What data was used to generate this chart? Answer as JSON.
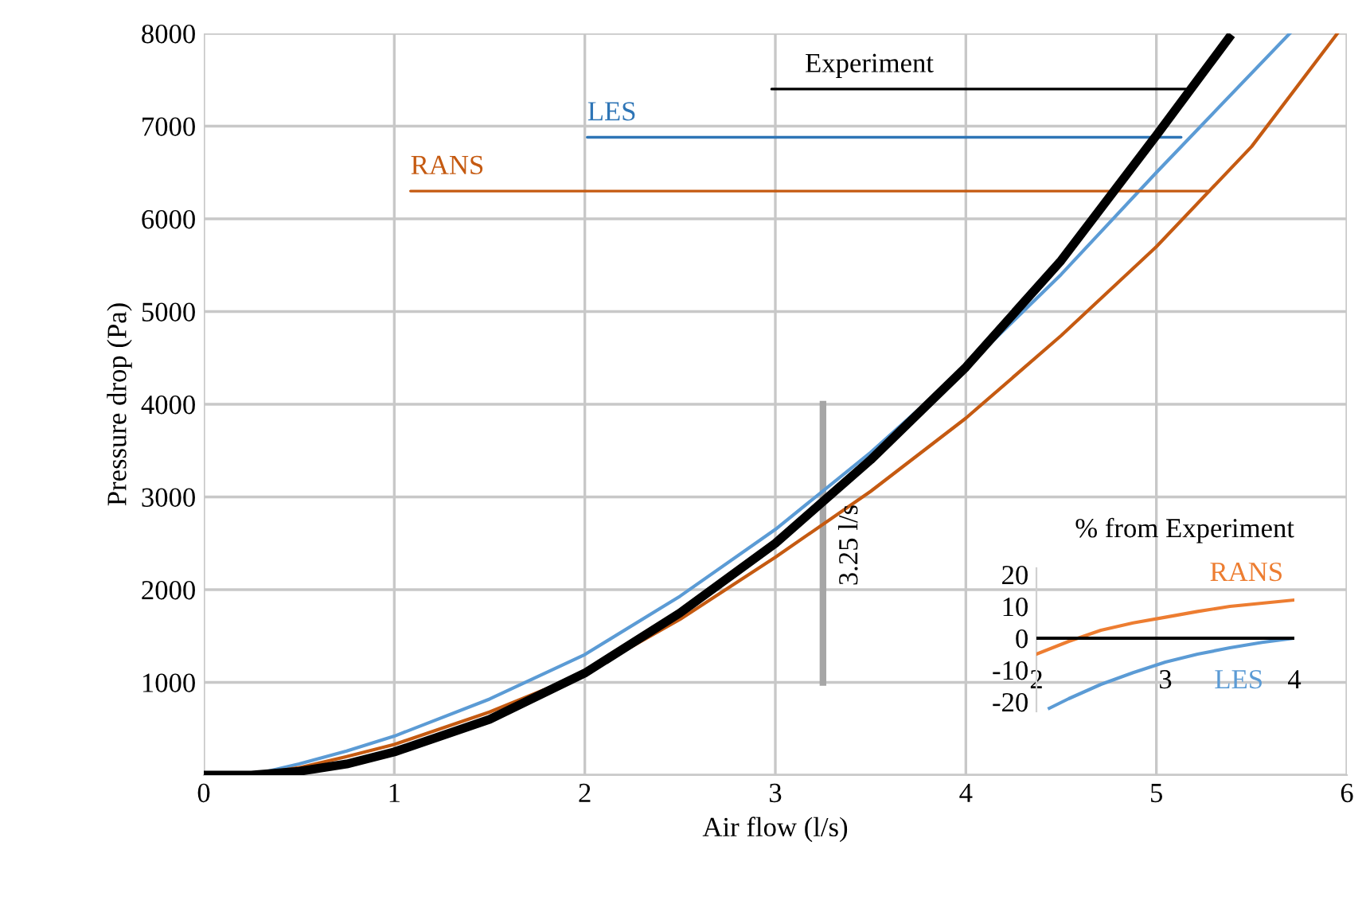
{
  "chart_data": [
    {
      "type": "line",
      "xlabel": "Air flow (l/s)",
      "ylabel": "Pressure drop (Pa)",
      "xlim": [
        0,
        6
      ],
      "ylim": [
        0,
        8000
      ],
      "xticks": [
        0,
        1,
        2,
        3,
        4,
        5,
        6
      ],
      "yticks": [
        {
          "value": 0,
          "label": null
        },
        1000,
        2000,
        3000,
        4000,
        5000,
        6000,
        7000,
        8000
      ],
      "grid": true,
      "series": [
        {
          "color": "#000000",
          "x": [
            0,
            0.25,
            0.5,
            0.75,
            1,
            1.5,
            2,
            2.5,
            3,
            3.5,
            4,
            4.5,
            5,
            5.38
          ],
          "values": [
            0,
            0,
            40,
            120,
            250,
            600,
            1100,
            1750,
            2500,
            3400,
            4400,
            5550,
            6900,
            7950
          ]
        },
        {
          "color": "#5b9bd5",
          "x": [
            0.25,
            0.5,
            0.75,
            1,
            1.5,
            2,
            2.5,
            3,
            3.5,
            4,
            4.5,
            5,
            5.7
          ],
          "values": [
            0,
            120,
            260,
            420,
            820,
            1300,
            1930,
            2650,
            3480,
            4400,
            5400,
            6500,
            8000
          ]
        },
        {
          "color": "#c55a11",
          "x": [
            0.25,
            0.5,
            0.75,
            1,
            1.5,
            2,
            2.5,
            3,
            3.5,
            4,
            4.5,
            5,
            5.5,
            5.95
          ],
          "values": [
            0,
            80,
            200,
            330,
            680,
            1100,
            1680,
            2350,
            3060,
            3850,
            4740,
            5700,
            6780,
            8000
          ]
        }
      ],
      "annotations": [
        {
          "text": "Experiment",
          "x": 5.17,
          "y": 7400
        },
        {
          "text": "LES",
          "x": 5.13,
          "y": 6880
        },
        {
          "text": "RANS",
          "x": 5.28,
          "y": 6300
        }
      ],
      "ref_lines": [
        {
          "axis": "x",
          "value": 3.25,
          "label": "3.25 l/s",
          "color": "#a6a6a6"
        }
      ]
    },
    {
      "type": "line",
      "title": "% from Experiment",
      "xlim": [
        2,
        4
      ],
      "ylim": [
        -23,
        22
      ],
      "xticks": [
        2,
        3,
        4
      ],
      "yticks": [
        -20,
        -10,
        0,
        10,
        20
      ],
      "series": [
        {
          "color": "#000000",
          "x": [
            2,
            4
          ],
          "values": [
            0,
            0
          ]
        },
        {
          "name": "RANS",
          "color": "#ed7d31",
          "x": [
            2,
            2.25,
            2.5,
            2.75,
            3,
            3.25,
            3.5,
            3.75,
            4
          ],
          "values": [
            -5,
            -1,
            2.5,
            4.8,
            6.6,
            8.4,
            10,
            11,
            12
          ]
        },
        {
          "name": "LES",
          "color": "#5b9bd5",
          "x": [
            2.1,
            2.25,
            2.5,
            2.75,
            3,
            3.25,
            3.5,
            3.75,
            4
          ],
          "values": [
            -22,
            -19,
            -14.5,
            -10.8,
            -7.5,
            -5,
            -3,
            -1.3,
            0
          ]
        }
      ]
    }
  ]
}
